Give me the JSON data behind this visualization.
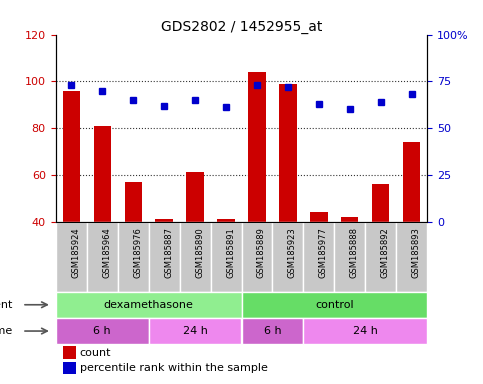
{
  "title": "GDS2802 / 1452955_at",
  "samples": [
    "GSM185924",
    "GSM185964",
    "GSM185976",
    "GSM185887",
    "GSM185890",
    "GSM185891",
    "GSM185889",
    "GSM185923",
    "GSM185977",
    "GSM185888",
    "GSM185892",
    "GSM185893"
  ],
  "counts": [
    96,
    81,
    57,
    41,
    61,
    41,
    104,
    99,
    44,
    42,
    56,
    74
  ],
  "percentile_ranks": [
    73,
    70,
    65,
    62,
    65,
    61,
    73,
    72,
    63,
    60,
    64,
    68
  ],
  "bar_color": "#cc0000",
  "dot_color": "#0000cc",
  "ylim_left": [
    40,
    120
  ],
  "ylim_right": [
    0,
    100
  ],
  "yticks_left": [
    40,
    60,
    80,
    100,
    120
  ],
  "yticks_right": [
    0,
    25,
    50,
    75,
    100
  ],
  "yticklabels_right": [
    "0",
    "25",
    "50",
    "75",
    "100%"
  ],
  "agent_groups": [
    {
      "label": "dexamethasone",
      "start": 0,
      "end": 6,
      "color": "#90ee90"
    },
    {
      "label": "control",
      "start": 6,
      "end": 12,
      "color": "#66dd66"
    }
  ],
  "time_groups": [
    {
      "label": "6 h",
      "start": 0,
      "end": 3,
      "color": "#cc66cc"
    },
    {
      "label": "24 h",
      "start": 3,
      "end": 6,
      "color": "#ee88ee"
    },
    {
      "label": "6 h",
      "start": 6,
      "end": 8,
      "color": "#cc66cc"
    },
    {
      "label": "24 h",
      "start": 8,
      "end": 12,
      "color": "#ee88ee"
    }
  ],
  "legend_count_label": "count",
  "legend_percentile_label": "percentile rank within the sample",
  "sample_bg_color": "#c8c8c8",
  "sample_border_color": "white",
  "grid_linestyle": "dotted",
  "grid_color": "#333333"
}
